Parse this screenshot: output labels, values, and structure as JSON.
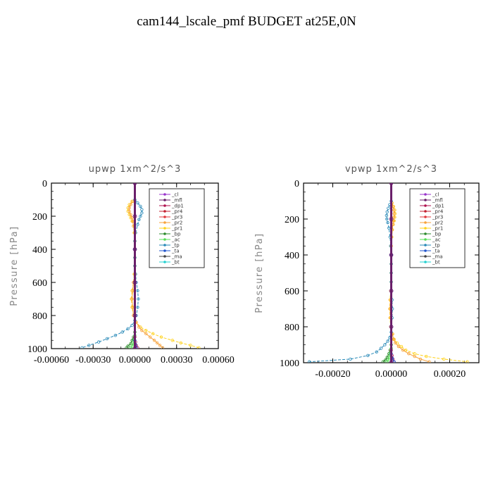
{
  "title": "cam144_lscale_pmf  BUDGET at25E,0N",
  "legend_entries": [
    "_cl",
    "_mfl",
    "_dp1",
    "_pr4",
    "_pr3",
    "_pr2",
    "_pr1",
    "_bp",
    "_ac",
    "_tp",
    "_ta",
    "_ma",
    "_bt"
  ],
  "colors": {
    "_cl": "#9933cc",
    "_mfl": "#6a1f6a",
    "_dp1": "#b0124f",
    "_pr4": "#c21f2f",
    "_pr3": "#e0383c",
    "_pr2": "#f7a23b",
    "_pr1": "#ffd21a",
    "_bp": "#2a8a2a",
    "_ac": "#55dd55",
    "_tp": "#2a8ab8",
    "_ta": "#2255cc",
    "_ma": "#444444",
    "_bt": "#22d0d0"
  },
  "chart_data": [
    {
      "type": "line",
      "title": "upwp   1xm^2/s^3",
      "ylabel": "Pressure [hPa]",
      "xlim": [
        -0.0006,
        0.0006
      ],
      "ylim": [
        1000,
        0
      ],
      "xticks": [
        "-0.00060",
        "-0.00030",
        "0.00000",
        "0.00030",
        "0.00060"
      ],
      "yticks": [
        "0",
        "200",
        "400",
        "600",
        "800",
        "1000"
      ],
      "legend_position": "top-right",
      "series": [
        {
          "name": "_pr1",
          "y": [
            110,
            130,
            150,
            170,
            190,
            210,
            230,
            260,
            300,
            350,
            400,
            450,
            500,
            550,
            600,
            650,
            700,
            750,
            800,
            840,
            870,
            890,
            910,
            930,
            950,
            965,
            980,
            995
          ],
          "x": [
            -2e-05,
            -4e-05,
            -5e-05,
            -5e-05,
            -4e-05,
            -3e-05,
            -2e-05,
            -1e-05,
            -5e-06,
            0,
            0,
            0,
            0,
            -5e-06,
            -1e-05,
            -2e-05,
            -2.5e-05,
            -2e-05,
            -1e-05,
            1e-05,
            4e-05,
            8e-05,
            0.00013,
            0.00019,
            0.00027,
            0.00033,
            0.0004,
            0.00046
          ]
        },
        {
          "name": "_pr2",
          "y": [
            110,
            130,
            150,
            170,
            190,
            210,
            230,
            260,
            300,
            350,
            400,
            450,
            500,
            550,
            600,
            650,
            700,
            750,
            800,
            840,
            870,
            890,
            910,
            930,
            950,
            965,
            980,
            995
          ],
          "x": [
            -1.5e-05,
            -3e-05,
            -4e-05,
            -4e-05,
            -3e-05,
            -2e-05,
            -1.5e-05,
            -1e-05,
            0,
            0,
            0,
            0,
            0,
            0,
            -1e-05,
            -1.5e-05,
            -2e-05,
            -1.5e-05,
            -1e-05,
            1e-05,
            3e-05,
            5e-05,
            8e-05,
            0.00011,
            0.00014,
            0.00016,
            0.00018,
            0.0002
          ]
        },
        {
          "name": "_tp",
          "y": [
            100,
            120,
            140,
            160,
            180,
            200,
            220,
            250,
            300,
            350,
            400,
            450,
            500,
            550,
            600,
            650,
            700,
            750,
            800,
            830,
            860,
            880,
            900,
            920,
            940,
            960,
            980,
            995
          ],
          "x": [
            0,
            2e-05,
            4e-05,
            5e-05,
            5e-05,
            4e-05,
            3e-05,
            2e-05,
            5e-06,
            0,
            0,
            0,
            0,
            5e-06,
            1e-05,
            2e-05,
            2.5e-05,
            2e-05,
            1e-05,
            0,
            -2e-05,
            -5e-05,
            -9e-05,
            -0.00014,
            -0.0002,
            -0.00026,
            -0.00033,
            -0.00038
          ]
        },
        {
          "name": "_bp",
          "y": [
            900,
            930,
            950,
            970,
            985,
            995
          ],
          "x": [
            0,
            -1e-05,
            -2e-05,
            -3e-05,
            -5e-05,
            -6e-05
          ]
        },
        {
          "name": "_ac",
          "y": [
            920,
            950,
            970,
            985,
            995
          ],
          "x": [
            0,
            -5e-06,
            -1e-05,
            -2e-05,
            -3e-05
          ]
        },
        {
          "name": "_dp1",
          "y": [
            930,
            960,
            980,
            995
          ],
          "x": [
            0,
            5e-06,
            1e-05,
            2e-05
          ]
        },
        {
          "name": "_ta",
          "y": [
            950,
            975,
            995
          ],
          "x": [
            0,
            5e-06,
            1e-05
          ]
        },
        {
          "name": "_cl",
          "y": [
            0,
            200,
            400,
            600,
            800,
            1000
          ],
          "x": [
            0,
            0,
            0,
            0,
            0,
            0
          ]
        },
        {
          "name": "_mfl",
          "y": [
            0,
            200,
            400,
            600,
            800,
            1000
          ],
          "x": [
            0,
            0,
            0,
            0,
            0,
            0
          ]
        }
      ]
    },
    {
      "type": "line",
      "title": "vpwp   1xm^2/s^3",
      "ylabel": "Pressure [hPa]",
      "xlim": [
        -0.0003,
        0.0003
      ],
      "ylim": [
        1000,
        0
      ],
      "xticks": [
        "-0.00020",
        "0.00000",
        "0.00020"
      ],
      "yticks": [
        "0",
        "200",
        "400",
        "600",
        "800",
        "1000"
      ],
      "legend_position": "top-right",
      "series": [
        {
          "name": "_pr1",
          "y": [
            110,
            130,
            150,
            170,
            190,
            210,
            230,
            260,
            300,
            350,
            400,
            450,
            500,
            550,
            600,
            650,
            700,
            750,
            800,
            840,
            870,
            890,
            910,
            930,
            950,
            965,
            980,
            995
          ],
          "x": [
            3e-06,
            8e-06,
            1.2e-05,
            1.3e-05,
            1.2e-05,
            1e-05,
            7e-06,
            4e-06,
            2e-06,
            0,
            0,
            0,
            0,
            0,
            -2e-06,
            -4e-06,
            -5e-06,
            -4e-06,
            -2e-06,
            5e-06,
            1e-05,
            2e-05,
            3.5e-05,
            5e-05,
            8e-05,
            0.00012,
            0.00018,
            0.00026
          ]
        },
        {
          "name": "_pr2",
          "y": [
            110,
            130,
            150,
            170,
            190,
            210,
            230,
            260,
            300,
            350,
            400,
            450,
            500,
            550,
            600,
            650,
            700,
            750,
            800,
            840,
            870,
            890,
            910,
            930,
            950,
            965,
            980,
            995
          ],
          "x": [
            2e-06,
            6e-06,
            9e-06,
            1e-05,
            9e-06,
            8e-06,
            6e-06,
            3e-06,
            1e-06,
            0,
            0,
            0,
            0,
            0,
            -1e-06,
            -3e-06,
            -4e-06,
            -3e-06,
            -1e-06,
            4e-06,
            8e-06,
            1.4e-05,
            2.5e-05,
            4e-05,
            6e-05,
            8e-05,
            0.0001,
            0.00013
          ]
        },
        {
          "name": "_tp",
          "y": [
            100,
            120,
            140,
            160,
            180,
            200,
            220,
            250,
            300,
            350,
            400,
            450,
            500,
            550,
            600,
            650,
            700,
            750,
            800,
            830,
            860,
            880,
            900,
            920,
            940,
            960,
            980,
            995
          ],
          "x": [
            0,
            -5e-06,
            -1e-05,
            -1.4e-05,
            -1.6e-05,
            -1.5e-05,
            -1.2e-05,
            -8e-06,
            -4e-06,
            -2e-06,
            0,
            0,
            0,
            0,
            2e-06,
            3e-06,
            4e-06,
            3e-06,
            2e-06,
            0,
            -5e-06,
            -1.2e-05,
            -2.2e-05,
            -3.5e-05,
            -5e-05,
            -8e-05,
            -0.00014,
            -0.00028
          ]
        },
        {
          "name": "_bp",
          "y": [
            900,
            930,
            950,
            970,
            985,
            995
          ],
          "x": [
            0,
            -4e-06,
            -8e-06,
            -1.4e-05,
            -2e-05,
            -2.8e-05
          ]
        },
        {
          "name": "_ac",
          "y": [
            920,
            950,
            970,
            985,
            995
          ],
          "x": [
            0,
            -3e-06,
            -6e-06,
            -1e-05,
            -1.5e-05
          ]
        },
        {
          "name": "_dp1",
          "y": [
            930,
            960,
            980,
            995
          ],
          "x": [
            0,
            3e-06,
            6e-06,
            1e-05
          ]
        },
        {
          "name": "_ta",
          "y": [
            950,
            975,
            995
          ],
          "x": [
            0,
            4e-06,
            1e-05
          ]
        },
        {
          "name": "_cl",
          "y": [
            0,
            200,
            400,
            600,
            800,
            1000
          ],
          "x": [
            0,
            0,
            0,
            0,
            0,
            0
          ]
        },
        {
          "name": "_mfl",
          "y": [
            0,
            200,
            400,
            600,
            800,
            1000
          ],
          "x": [
            0,
            0,
            0,
            0,
            0,
            0
          ]
        }
      ]
    }
  ]
}
